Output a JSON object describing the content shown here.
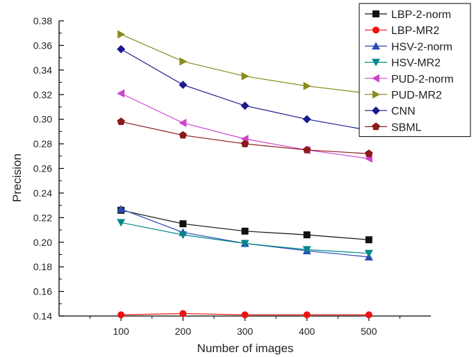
{
  "chart_data": {
    "type": "line",
    "xlabel": "Number of  images",
    "ylabel": "Precision",
    "x": [
      100,
      200,
      300,
      400,
      500
    ],
    "xlim": [
      0,
      600
    ],
    "ylim": [
      0.14,
      0.38
    ],
    "x_ticks": [
      100,
      200,
      300,
      400,
      500
    ],
    "y_ticks": [
      "0.14",
      "0.16",
      "0.18",
      "0.20",
      "0.22",
      "0.24",
      "0.26",
      "0.28",
      "0.30",
      "0.32",
      "0.34",
      "0.36",
      "0.38"
    ],
    "grid": false,
    "legend_position": "top-right",
    "series": [
      {
        "name": "LBP-2-norm",
        "color": "#111111",
        "marker": "square",
        "values": [
          0.226,
          0.215,
          0.209,
          0.206,
          0.202
        ]
      },
      {
        "name": "LBP-MR2",
        "color": "#ee1111",
        "marker": "circle",
        "values": [
          0.141,
          0.142,
          0.141,
          0.141,
          0.141
        ]
      },
      {
        "name": "HSV-2-norm",
        "color": "#2b4bb0",
        "marker": "triangle-up",
        "values": [
          0.227,
          0.208,
          0.199,
          0.193,
          0.188
        ]
      },
      {
        "name": "HSV-MR2",
        "color": "#00888a",
        "marker": "triangle-down",
        "values": [
          0.216,
          0.206,
          0.199,
          0.194,
          0.191
        ]
      },
      {
        "name": "PUD-2-norm",
        "color": "#cc44cc",
        "marker": "triangle-left",
        "values": [
          0.321,
          0.297,
          0.284,
          0.275,
          0.268
        ]
      },
      {
        "name": "PUD-MR2",
        "color": "#8a8a1e",
        "marker": "triangle-right",
        "values": [
          0.369,
          0.347,
          0.335,
          0.327,
          0.321
        ]
      },
      {
        "name": "CNN",
        "color": "#1a1a8c",
        "marker": "diamond",
        "values": [
          0.357,
          0.328,
          0.311,
          0.3,
          0.291
        ]
      },
      {
        "name": "SBML",
        "color": "#8b1a1a",
        "marker": "pentagon",
        "values": [
          0.298,
          0.287,
          0.28,
          0.275,
          0.272
        ]
      }
    ]
  }
}
